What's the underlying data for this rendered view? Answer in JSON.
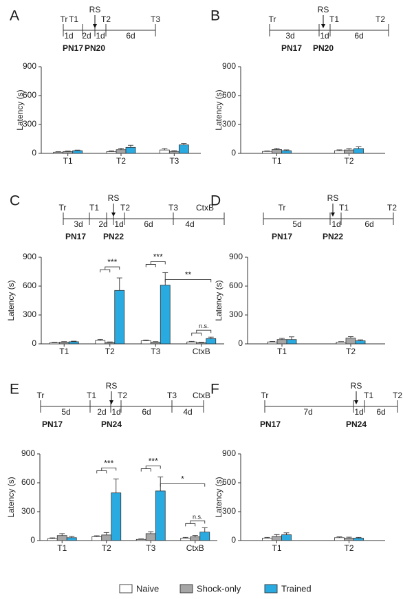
{
  "legend": {
    "items": [
      {
        "label": "Naive",
        "color": "#ffffff"
      },
      {
        "label": "Shock-only",
        "color": "#a6a6a6"
      },
      {
        "label": "Trained",
        "color": "#29abe2"
      }
    ]
  },
  "chart_data": [
    {
      "panel": "A",
      "type": "bar",
      "ylabel": "Latency (s)",
      "ylim": [
        0,
        900
      ],
      "yticks": [
        0,
        300,
        600,
        900
      ],
      "timeline": {
        "top_labels": [
          "Tr",
          "T1",
          "RS",
          "T2",
          "T3"
        ],
        "intervals": [
          "1d",
          "2d",
          "1d",
          "6d"
        ],
        "ages": [
          "PN17",
          "PN20"
        ]
      },
      "categories": [
        "T1",
        "T2",
        "T3"
      ],
      "series": [
        {
          "name": "Naive",
          "values": [
            12,
            18,
            35
          ],
          "errors": [
            5,
            8,
            15
          ]
        },
        {
          "name": "Shock-only",
          "values": [
            18,
            38,
            20
          ],
          "errors": [
            6,
            15,
            8
          ]
        },
        {
          "name": "Trained",
          "values": [
            28,
            62,
            88
          ],
          "errors": [
            6,
            22,
            15
          ]
        }
      ],
      "brackets": []
    },
    {
      "panel": "B",
      "type": "bar",
      "ylabel": "Latency (s)",
      "ylim": [
        0,
        900
      ],
      "yticks": [
        0,
        300,
        600,
        900
      ],
      "timeline": {
        "top_labels": [
          "Tr",
          "RS",
          "T1",
          "T2"
        ],
        "intervals": [
          "3d",
          "1d",
          "6d"
        ],
        "ages": [
          "PN17",
          "PN20"
        ]
      },
      "categories": [
        "T1",
        "T2"
      ],
      "series": [
        {
          "name": "Naive",
          "values": [
            20,
            28
          ],
          "errors": [
            5,
            8
          ]
        },
        {
          "name": "Shock-only",
          "values": [
            40,
            35
          ],
          "errors": [
            12,
            15
          ]
        },
        {
          "name": "Trained",
          "values": [
            28,
            50
          ],
          "errors": [
            8,
            18
          ]
        }
      ],
      "brackets": []
    },
    {
      "panel": "C",
      "type": "bar",
      "ylabel": "Latency (s)",
      "ylim": [
        0,
        900
      ],
      "yticks": [
        0,
        300,
        600,
        900
      ],
      "timeline": {
        "top_labels": [
          "Tr",
          "T1",
          "RS",
          "T2",
          "T3",
          "CtxB"
        ],
        "intervals": [
          "3d",
          "2d",
          "1d",
          "6d",
          "4d"
        ],
        "ages": [
          "PN17",
          "PN22"
        ]
      },
      "categories": [
        "T1",
        "T2",
        "T3",
        "CtxB"
      ],
      "series": [
        {
          "name": "Naive",
          "values": [
            12,
            35,
            32,
            20
          ],
          "errors": [
            5,
            12,
            8,
            6
          ]
        },
        {
          "name": "Shock-only",
          "values": [
            18,
            15,
            18,
            12
          ],
          "errors": [
            5,
            5,
            5,
            5
          ]
        },
        {
          "name": "Trained",
          "values": [
            22,
            555,
            610,
            55
          ],
          "errors": [
            6,
            130,
            130,
            15
          ]
        }
      ],
      "brackets": [
        {
          "label": "***",
          "cat": 1
        },
        {
          "label": "***",
          "cat": 2
        },
        {
          "label": "**",
          "from_cat": 2,
          "to_cat": 3
        },
        {
          "label": "n.s.",
          "cat": 3
        }
      ]
    },
    {
      "panel": "D",
      "type": "bar",
      "ylabel": "Latency (s)",
      "ylim": [
        0,
        900
      ],
      "yticks": [
        0,
        300,
        600,
        900
      ],
      "timeline": {
        "top_labels": [
          "Tr",
          "RS",
          "T1",
          "T2"
        ],
        "intervals": [
          "5d",
          "1d",
          "6d"
        ],
        "ages": [
          "PN17",
          "PN22"
        ]
      },
      "categories": [
        "T1",
        "T2"
      ],
      "series": [
        {
          "name": "Naive",
          "values": [
            20,
            18
          ],
          "errors": [
            5,
            5
          ]
        },
        {
          "name": "Shock-only",
          "values": [
            45,
            60
          ],
          "errors": [
            12,
            15
          ]
        },
        {
          "name": "Trained",
          "values": [
            45,
            32
          ],
          "errors": [
            28,
            10
          ]
        }
      ],
      "brackets": []
    },
    {
      "panel": "E",
      "type": "bar",
      "ylabel": "Latency (s)",
      "ylim": [
        0,
        900
      ],
      "yticks": [
        0,
        300,
        600,
        900
      ],
      "timeline": {
        "top_labels": [
          "Tr",
          "T1",
          "RS",
          "T2",
          "T3",
          "CtxB"
        ],
        "intervals": [
          "5d",
          "2d",
          "1d",
          "6d",
          "4d"
        ],
        "ages": [
          "PN17",
          "PN24"
        ]
      },
      "categories": [
        "T1",
        "T2",
        "T3",
        "CtxB"
      ],
      "series": [
        {
          "name": "Naive",
          "values": [
            20,
            40,
            12,
            25
          ],
          "errors": [
            8,
            10,
            5,
            8
          ]
        },
        {
          "name": "Shock-only",
          "values": [
            52,
            58,
            72,
            38
          ],
          "errors": [
            20,
            25,
            20,
            15
          ]
        },
        {
          "name": "Trained",
          "values": [
            30,
            495,
            515,
            88
          ],
          "errors": [
            12,
            145,
            145,
            45
          ]
        }
      ],
      "brackets": [
        {
          "label": "***",
          "cat": 1
        },
        {
          "label": "***",
          "cat": 2
        },
        {
          "label": "*",
          "from_cat": 2,
          "to_cat": 3
        },
        {
          "label": "n.s.",
          "cat": 3
        }
      ]
    },
    {
      "panel": "F",
      "type": "bar",
      "ylabel": "Latency (s)",
      "ylim": [
        0,
        900
      ],
      "yticks": [
        0,
        300,
        600,
        900
      ],
      "timeline": {
        "top_labels": [
          "Tr",
          "RS",
          "T1",
          "T2"
        ],
        "intervals": [
          "7d",
          "1d",
          "6d"
        ],
        "ages": [
          "PN17",
          "PN24"
        ]
      },
      "categories": [
        "T1",
        "T2"
      ],
      "series": [
        {
          "name": "Naive",
          "values": [
            25,
            30
          ],
          "errors": [
            8,
            8
          ]
        },
        {
          "name": "Shock-only",
          "values": [
            42,
            25
          ],
          "errors": [
            20,
            10
          ]
        },
        {
          "name": "Trained",
          "values": [
            60,
            25
          ],
          "errors": [
            20,
            8
          ]
        }
      ],
      "brackets": []
    }
  ]
}
